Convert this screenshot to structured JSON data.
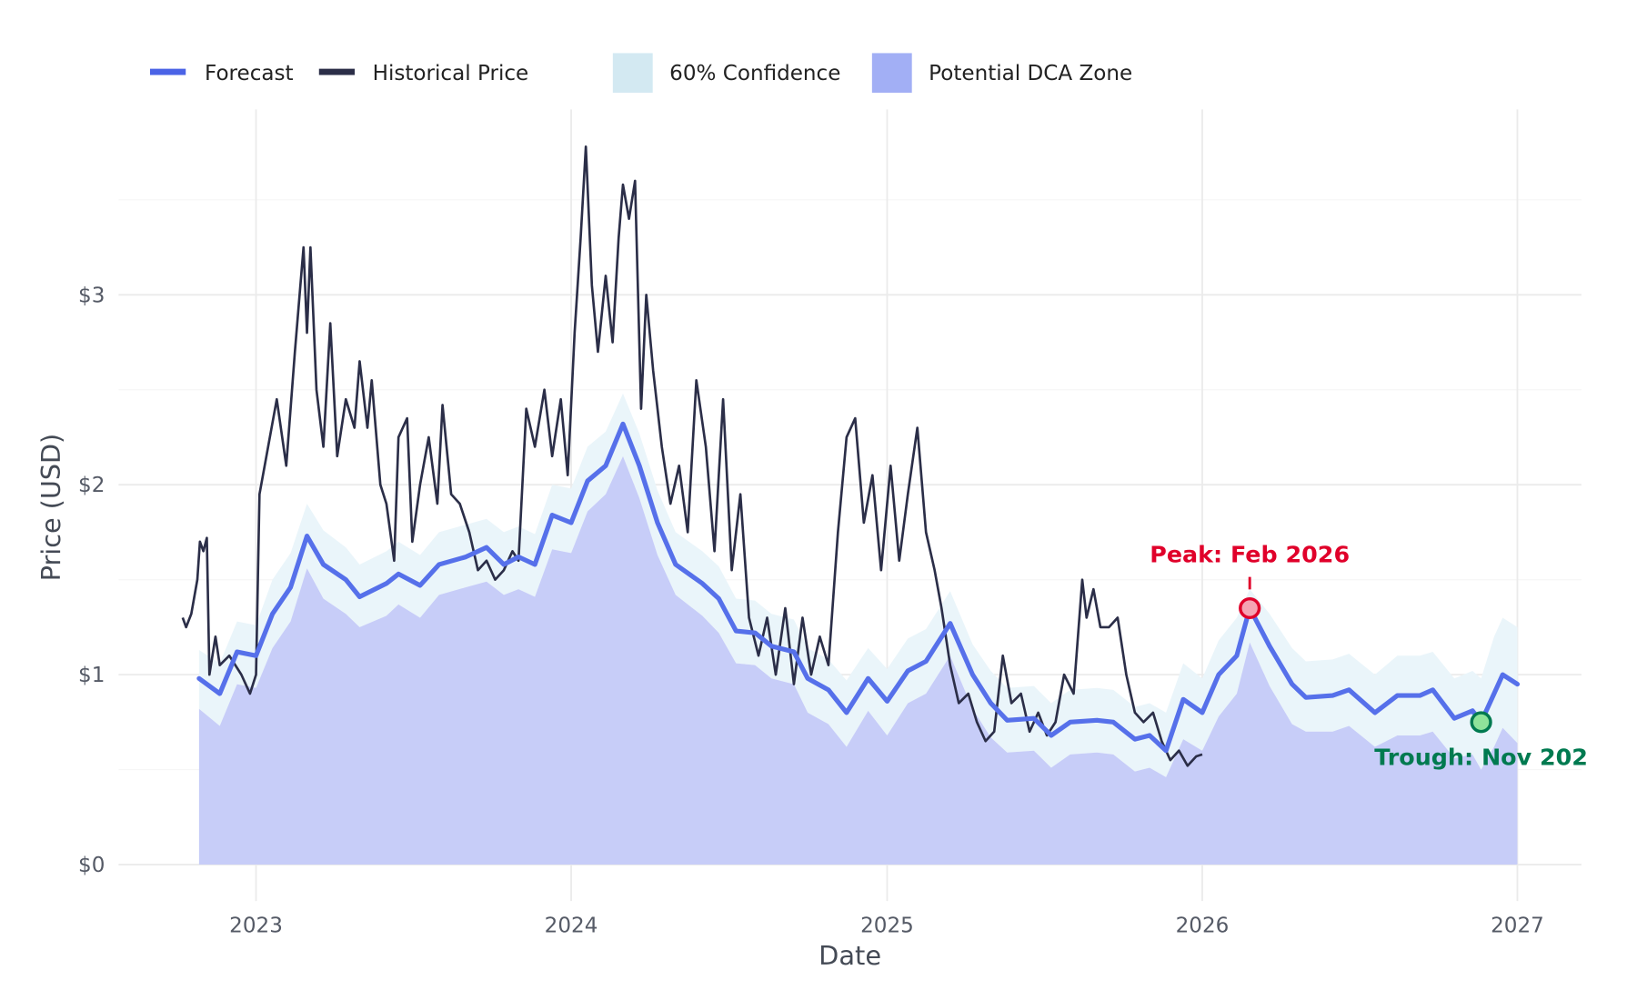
{
  "chart_data": {
    "type": "line",
    "title": "",
    "xlabel": "Date",
    "ylabel": "Price (USD)",
    "xlim": [
      "2022-08-15",
      "2027-03-15"
    ],
    "ylim": [
      -0.18,
      3.95
    ],
    "x_ticks": [
      "2023",
      "2024",
      "2025",
      "2026",
      "2027"
    ],
    "y_ticks": [
      {
        "value": 0,
        "label": "$0"
      },
      {
        "value": 1,
        "label": "$1"
      },
      {
        "value": 2,
        "label": "$2"
      },
      {
        "value": 3,
        "label": "$3"
      }
    ],
    "grid": true,
    "legend_placement": "top-left",
    "legend": [
      {
        "label": "Forecast",
        "kind": "line",
        "color": "#4b63e6"
      },
      {
        "label": "Historical Price",
        "kind": "line",
        "color": "#2b2e48"
      },
      {
        "label": "60% Confidence",
        "kind": "area",
        "color": "#d3e9f2"
      },
      {
        "label": "Potential DCA Zone",
        "kind": "area",
        "color": "#a2aff5"
      }
    ],
    "colors": {
      "forecast": "#5670ea",
      "historical": "#2b2e48",
      "confidence": "#eaf5fa",
      "dca": "#c7cdf8",
      "peak": "#e0002a",
      "trough": "#007a50",
      "grid": "#ebebeb"
    },
    "forecast_columns": [
      "date",
      "forecast",
      "conf_low",
      "conf_high"
    ],
    "forecast": [
      [
        "2022-10-27",
        0.98,
        0.82,
        1.13
      ],
      [
        "2022-11-20",
        0.9,
        0.73,
        1.06
      ],
      [
        "2022-12-10",
        1.12,
        0.95,
        1.28
      ],
      [
        "2023-01-01",
        1.1,
        0.93,
        1.26
      ],
      [
        "2023-01-20",
        1.32,
        1.14,
        1.5
      ],
      [
        "2023-02-10",
        1.46,
        1.28,
        1.64
      ],
      [
        "2023-03-01",
        1.73,
        1.56,
        1.9
      ],
      [
        "2023-03-20",
        1.58,
        1.4,
        1.76
      ],
      [
        "2023-04-15",
        1.5,
        1.32,
        1.67
      ],
      [
        "2023-05-01",
        1.41,
        1.25,
        1.58
      ],
      [
        "2023-06-01",
        1.48,
        1.31,
        1.65
      ],
      [
        "2023-06-15",
        1.53,
        1.37,
        1.7
      ],
      [
        "2023-07-10",
        1.47,
        1.3,
        1.63
      ],
      [
        "2023-08-01",
        1.58,
        1.42,
        1.75
      ],
      [
        "2023-09-01",
        1.62,
        1.46,
        1.79
      ],
      [
        "2023-09-25",
        1.67,
        1.49,
        1.82
      ],
      [
        "2023-10-15",
        1.58,
        1.42,
        1.75
      ],
      [
        "2023-11-01",
        1.62,
        1.45,
        1.78
      ],
      [
        "2023-11-20",
        1.58,
        1.41,
        1.74
      ],
      [
        "2023-12-10",
        1.84,
        1.66,
        2.0
      ],
      [
        "2024-01-01",
        1.8,
        1.64,
        1.98
      ],
      [
        "2024-01-20",
        2.02,
        1.86,
        2.2
      ],
      [
        "2024-02-10",
        2.1,
        1.95,
        2.28
      ],
      [
        "2024-03-01",
        2.32,
        2.15,
        2.48
      ],
      [
        "2024-03-20",
        2.1,
        1.93,
        2.27
      ],
      [
        "2024-04-10",
        1.8,
        1.63,
        1.97
      ],
      [
        "2024-05-01",
        1.58,
        1.42,
        1.75
      ],
      [
        "2024-06-01",
        1.48,
        1.31,
        1.65
      ],
      [
        "2024-06-20",
        1.4,
        1.22,
        1.57
      ],
      [
        "2024-07-10",
        1.23,
        1.06,
        1.4
      ],
      [
        "2024-08-01",
        1.22,
        1.05,
        1.39
      ],
      [
        "2024-08-20",
        1.15,
        0.98,
        1.32
      ],
      [
        "2024-09-15",
        1.12,
        0.95,
        1.29
      ],
      [
        "2024-10-01",
        0.98,
        0.8,
        1.14
      ],
      [
        "2024-10-25",
        0.92,
        0.74,
        1.08
      ],
      [
        "2024-11-15",
        0.8,
        0.62,
        0.97
      ],
      [
        "2024-12-10",
        0.98,
        0.81,
        1.14
      ],
      [
        "2025-01-01",
        0.86,
        0.68,
        1.03
      ],
      [
        "2025-01-25",
        1.02,
        0.85,
        1.19
      ],
      [
        "2025-02-15",
        1.07,
        0.9,
        1.24
      ],
      [
        "2025-03-15",
        1.27,
        1.1,
        1.44
      ],
      [
        "2025-04-10",
        1.0,
        0.82,
        1.16
      ],
      [
        "2025-05-01",
        0.85,
        0.67,
        1.02
      ],
      [
        "2025-05-20",
        0.76,
        0.59,
        0.93
      ],
      [
        "2025-06-20",
        0.77,
        0.6,
        0.94
      ],
      [
        "2025-07-10",
        0.68,
        0.51,
        0.85
      ],
      [
        "2025-08-01",
        0.75,
        0.58,
        0.92
      ],
      [
        "2025-09-01",
        0.76,
        0.59,
        0.93
      ],
      [
        "2025-09-20",
        0.75,
        0.58,
        0.92
      ],
      [
        "2025-10-15",
        0.66,
        0.49,
        0.83
      ],
      [
        "2025-11-01",
        0.68,
        0.51,
        0.85
      ],
      [
        "2025-11-20",
        0.6,
        0.46,
        0.8
      ],
      [
        "2025-12-10",
        0.87,
        0.66,
        1.06
      ],
      [
        "2026-01-01",
        0.8,
        0.6,
        0.98
      ],
      [
        "2026-01-20",
        1.0,
        0.78,
        1.18
      ],
      [
        "2026-02-10",
        1.1,
        0.9,
        1.3
      ],
      [
        "2026-02-25",
        1.35,
        1.17,
        1.45
      ],
      [
        "2026-03-20",
        1.15,
        0.94,
        1.32
      ],
      [
        "2026-04-15",
        0.95,
        0.74,
        1.14
      ],
      [
        "2026-05-01",
        0.88,
        0.7,
        1.07
      ],
      [
        "2026-06-01",
        0.89,
        0.7,
        1.08
      ],
      [
        "2026-06-20",
        0.92,
        0.73,
        1.11
      ],
      [
        "2026-07-20",
        0.8,
        0.62,
        1.0
      ],
      [
        "2026-08-15",
        0.89,
        0.68,
        1.1
      ],
      [
        "2026-09-10",
        0.89,
        0.68,
        1.1
      ],
      [
        "2026-09-25",
        0.92,
        0.7,
        1.12
      ],
      [
        "2026-10-20",
        0.77,
        0.56,
        0.98
      ],
      [
        "2026-11-10",
        0.81,
        0.58,
        1.02
      ],
      [
        "2026-11-20",
        0.75,
        0.5,
        0.98
      ],
      [
        "2026-12-05",
        0.9,
        0.62,
        1.2
      ],
      [
        "2026-12-15",
        1.0,
        0.72,
        1.3
      ],
      [
        "2027-01-01",
        0.95,
        0.64,
        1.25
      ]
    ],
    "historical": [
      [
        "2022-10-08",
        1.3
      ],
      [
        "2022-10-12",
        1.25
      ],
      [
        "2022-10-18",
        1.32
      ],
      [
        "2022-10-25",
        1.5
      ],
      [
        "2022-10-28",
        1.7
      ],
      [
        "2022-11-01",
        1.65
      ],
      [
        "2022-11-05",
        1.72
      ],
      [
        "2022-11-08",
        1.0
      ],
      [
        "2022-11-15",
        1.2
      ],
      [
        "2022-11-20",
        1.05
      ],
      [
        "2022-12-01",
        1.1
      ],
      [
        "2022-12-15",
        1.0
      ],
      [
        "2022-12-25",
        0.9
      ],
      [
        "2023-01-01",
        1.0
      ],
      [
        "2023-01-05",
        1.95
      ],
      [
        "2023-01-15",
        2.2
      ],
      [
        "2023-01-25",
        2.45
      ],
      [
        "2023-02-05",
        2.1
      ],
      [
        "2023-02-15",
        2.7
      ],
      [
        "2023-02-25",
        3.25
      ],
      [
        "2023-03-01",
        2.8
      ],
      [
        "2023-03-05",
        3.25
      ],
      [
        "2023-03-12",
        2.5
      ],
      [
        "2023-03-20",
        2.2
      ],
      [
        "2023-03-28",
        2.85
      ],
      [
        "2023-04-05",
        2.15
      ],
      [
        "2023-04-15",
        2.45
      ],
      [
        "2023-04-25",
        2.3
      ],
      [
        "2023-05-01",
        2.65
      ],
      [
        "2023-05-10",
        2.3
      ],
      [
        "2023-05-15",
        2.55
      ],
      [
        "2023-05-25",
        2.0
      ],
      [
        "2023-06-01",
        1.9
      ],
      [
        "2023-06-10",
        1.6
      ],
      [
        "2023-06-15",
        2.25
      ],
      [
        "2023-06-25",
        2.35
      ],
      [
        "2023-07-01",
        1.7
      ],
      [
        "2023-07-10",
        2.0
      ],
      [
        "2023-07-20",
        2.25
      ],
      [
        "2023-07-30",
        1.9
      ],
      [
        "2023-08-05",
        2.42
      ],
      [
        "2023-08-15",
        1.95
      ],
      [
        "2023-08-25",
        1.9
      ],
      [
        "2023-09-05",
        1.75
      ],
      [
        "2023-09-15",
        1.55
      ],
      [
        "2023-09-25",
        1.6
      ],
      [
        "2023-10-05",
        1.5
      ],
      [
        "2023-10-15",
        1.55
      ],
      [
        "2023-10-25",
        1.65
      ],
      [
        "2023-11-01",
        1.6
      ],
      [
        "2023-11-10",
        2.4
      ],
      [
        "2023-11-20",
        2.2
      ],
      [
        "2023-12-01",
        2.5
      ],
      [
        "2023-12-10",
        2.15
      ],
      [
        "2023-12-20",
        2.45
      ],
      [
        "2023-12-28",
        2.05
      ],
      [
        "2024-01-05",
        2.8
      ],
      [
        "2024-01-12",
        3.3
      ],
      [
        "2024-01-18",
        3.78
      ],
      [
        "2024-01-25",
        3.05
      ],
      [
        "2024-02-01",
        2.7
      ],
      [
        "2024-02-10",
        3.1
      ],
      [
        "2024-02-18",
        2.75
      ],
      [
        "2024-02-25",
        3.3
      ],
      [
        "2024-03-01",
        3.58
      ],
      [
        "2024-03-08",
        3.4
      ],
      [
        "2024-03-15",
        3.6
      ],
      [
        "2024-03-22",
        2.4
      ],
      [
        "2024-03-28",
        3.0
      ],
      [
        "2024-04-05",
        2.6
      ],
      [
        "2024-04-15",
        2.2
      ],
      [
        "2024-04-25",
        1.9
      ],
      [
        "2024-05-05",
        2.1
      ],
      [
        "2024-05-15",
        1.75
      ],
      [
        "2024-05-25",
        2.55
      ],
      [
        "2024-06-05",
        2.2
      ],
      [
        "2024-06-15",
        1.65
      ],
      [
        "2024-06-25",
        2.45
      ],
      [
        "2024-07-05",
        1.55
      ],
      [
        "2024-07-15",
        1.95
      ],
      [
        "2024-07-25",
        1.3
      ],
      [
        "2024-08-05",
        1.1
      ],
      [
        "2024-08-15",
        1.3
      ],
      [
        "2024-08-25",
        1.0
      ],
      [
        "2024-09-05",
        1.35
      ],
      [
        "2024-09-15",
        0.95
      ],
      [
        "2024-09-25",
        1.3
      ],
      [
        "2024-10-05",
        1.0
      ],
      [
        "2024-10-15",
        1.2
      ],
      [
        "2024-10-25",
        1.05
      ],
      [
        "2024-11-05",
        1.75
      ],
      [
        "2024-11-15",
        2.25
      ],
      [
        "2024-11-25",
        2.35
      ],
      [
        "2024-12-05",
        1.8
      ],
      [
        "2024-12-15",
        2.05
      ],
      [
        "2024-12-25",
        1.55
      ],
      [
        "2025-01-05",
        2.1
      ],
      [
        "2025-01-15",
        1.6
      ],
      [
        "2025-01-25",
        1.95
      ],
      [
        "2025-02-05",
        2.3
      ],
      [
        "2025-02-15",
        1.75
      ],
      [
        "2025-02-25",
        1.55
      ],
      [
        "2025-03-05",
        1.35
      ],
      [
        "2025-03-15",
        1.05
      ],
      [
        "2025-03-25",
        0.85
      ],
      [
        "2025-04-05",
        0.9
      ],
      [
        "2025-04-15",
        0.75
      ],
      [
        "2025-04-25",
        0.65
      ],
      [
        "2025-05-05",
        0.7
      ],
      [
        "2025-05-15",
        1.1
      ],
      [
        "2025-05-25",
        0.85
      ],
      [
        "2025-06-05",
        0.9
      ],
      [
        "2025-06-15",
        0.7
      ],
      [
        "2025-06-25",
        0.8
      ],
      [
        "2025-07-05",
        0.68
      ],
      [
        "2025-07-15",
        0.75
      ],
      [
        "2025-07-25",
        1.0
      ],
      [
        "2025-08-05",
        0.9
      ],
      [
        "2025-08-15",
        1.5
      ],
      [
        "2025-08-20",
        1.3
      ],
      [
        "2025-08-28",
        1.45
      ],
      [
        "2025-09-05",
        1.25
      ],
      [
        "2025-09-15",
        1.25
      ],
      [
        "2025-09-25",
        1.3
      ],
      [
        "2025-10-05",
        1.0
      ],
      [
        "2025-10-15",
        0.8
      ],
      [
        "2025-10-25",
        0.75
      ],
      [
        "2025-11-05",
        0.8
      ],
      [
        "2025-11-15",
        0.65
      ],
      [
        "2025-11-25",
        0.55
      ],
      [
        "2025-12-05",
        0.6
      ],
      [
        "2025-12-15",
        0.52
      ],
      [
        "2025-12-25",
        0.57
      ],
      [
        "2026-01-01",
        0.58
      ]
    ],
    "annotations": [
      {
        "label": "Peak: Feb 2026",
        "date": "2026-02-25",
        "value": 1.35,
        "color": "#e0002a",
        "fill": "#f5a3b3"
      },
      {
        "label": "Trough: Nov 202",
        "date": "2026-11-20",
        "value": 0.75,
        "color": "#007a50",
        "fill": "#8fe39a"
      }
    ]
  }
}
